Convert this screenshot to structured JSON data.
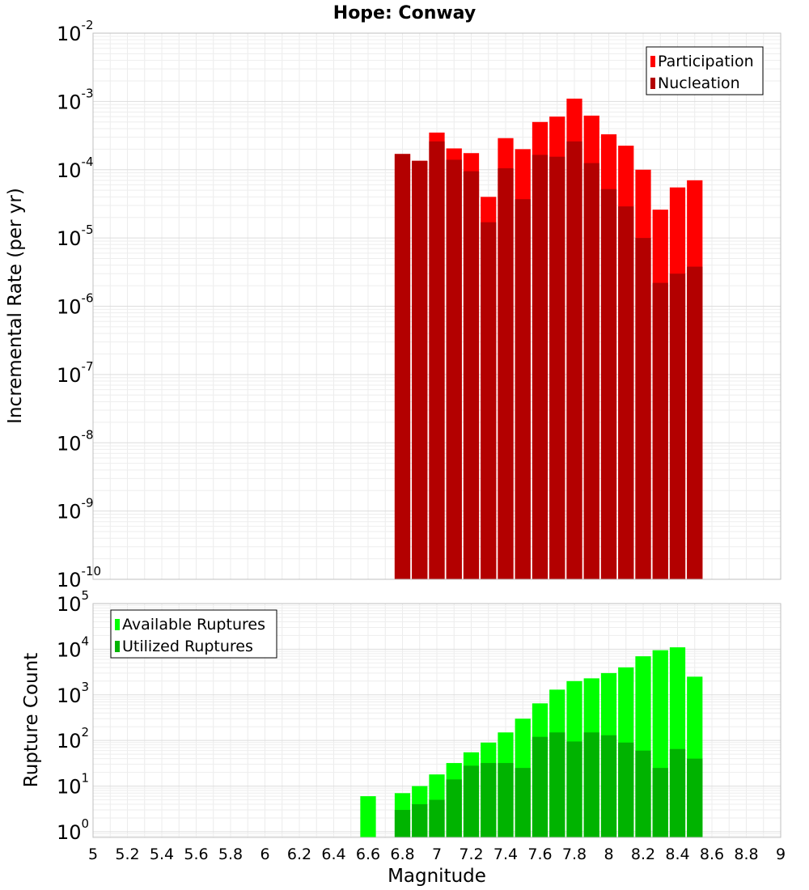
{
  "chart_data": [
    {
      "type": "bar",
      "title": "Hope: Conway",
      "xlabel": "",
      "ylabel": "Incremental Rate (per yr)",
      "yscale": "log",
      "ylim": [
        1e-10,
        0.01
      ],
      "xlim": [
        5,
        9
      ],
      "bin_width": 0.1,
      "grid": true,
      "legend_position": "top-right",
      "yticks": [
        "10^-10",
        "10^-9",
        "10^-8",
        "10^-7",
        "10^-6",
        "10^-5",
        "10^-4",
        "10^-3",
        "10^-2"
      ],
      "x": [
        6.8,
        6.9,
        7.0,
        7.1,
        7.2,
        7.3,
        7.4,
        7.5,
        7.6,
        7.7,
        7.8,
        7.9,
        8.0,
        8.1,
        8.2,
        8.3,
        8.4,
        8.5
      ],
      "series": [
        {
          "name": "Participation",
          "color": "#ff0000",
          "values": [
            0.00017,
            0.000135,
            0.00035,
            0.000205,
            0.000175,
            4e-05,
            0.00029,
            0.0002,
            0.0005,
            0.0006,
            0.0011,
            0.00062,
            0.00033,
            0.000225,
            0.0001,
            2.6e-05,
            5.5e-05,
            7e-05
          ]
        },
        {
          "name": "Nucleation",
          "color": "#b30000",
          "values": [
            0.00017,
            0.000135,
            0.00026,
            0.00014,
            9.5e-05,
            1.7e-05,
            0.000105,
            3.7e-05,
            0.000165,
            0.000155,
            0.00026,
            0.000125,
            5.2e-05,
            2.9e-05,
            1e-05,
            2.2e-06,
            3e-06,
            3.8e-06
          ]
        }
      ]
    },
    {
      "type": "bar",
      "title": "",
      "xlabel": "Magnitude",
      "ylabel": "Rupture Count",
      "yscale": "log",
      "ylim": [
        0.75,
        100000.0
      ],
      "xlim": [
        5,
        9
      ],
      "bin_width": 0.1,
      "grid": true,
      "legend_position": "top-left",
      "yticks": [
        "10^0",
        "10^1",
        "10^2",
        "10^3",
        "10^4",
        "10^5"
      ],
      "xticks": [
        "5",
        "5.2",
        "5.4",
        "5.6",
        "5.8",
        "6",
        "6.2",
        "6.4",
        "6.6",
        "6.8",
        "7",
        "7.2",
        "7.4",
        "7.6",
        "7.8",
        "8",
        "8.2",
        "8.4",
        "8.6",
        "8.8",
        "9"
      ],
      "x": [
        6.6,
        6.8,
        6.9,
        7.0,
        7.1,
        7.2,
        7.3,
        7.4,
        7.5,
        7.6,
        7.7,
        7.8,
        7.9,
        8.0,
        8.1,
        8.2,
        8.3,
        8.4,
        8.5
      ],
      "series": [
        {
          "name": "Available Ruptures",
          "color": "#00ff00",
          "values": [
            6,
            7,
            10,
            18,
            32,
            55,
            90,
            150,
            300,
            650,
            1300,
            2000,
            2300,
            3000,
            4000,
            7000,
            9500,
            11000,
            2500
          ]
        },
        {
          "name": "Utilized Ruptures",
          "color": "#00b300",
          "values": [
            0,
            3,
            4,
            5,
            14,
            28,
            32,
            32,
            25,
            120,
            150,
            95,
            150,
            130,
            90,
            60,
            25,
            65,
            40
          ]
        }
      ]
    }
  ]
}
